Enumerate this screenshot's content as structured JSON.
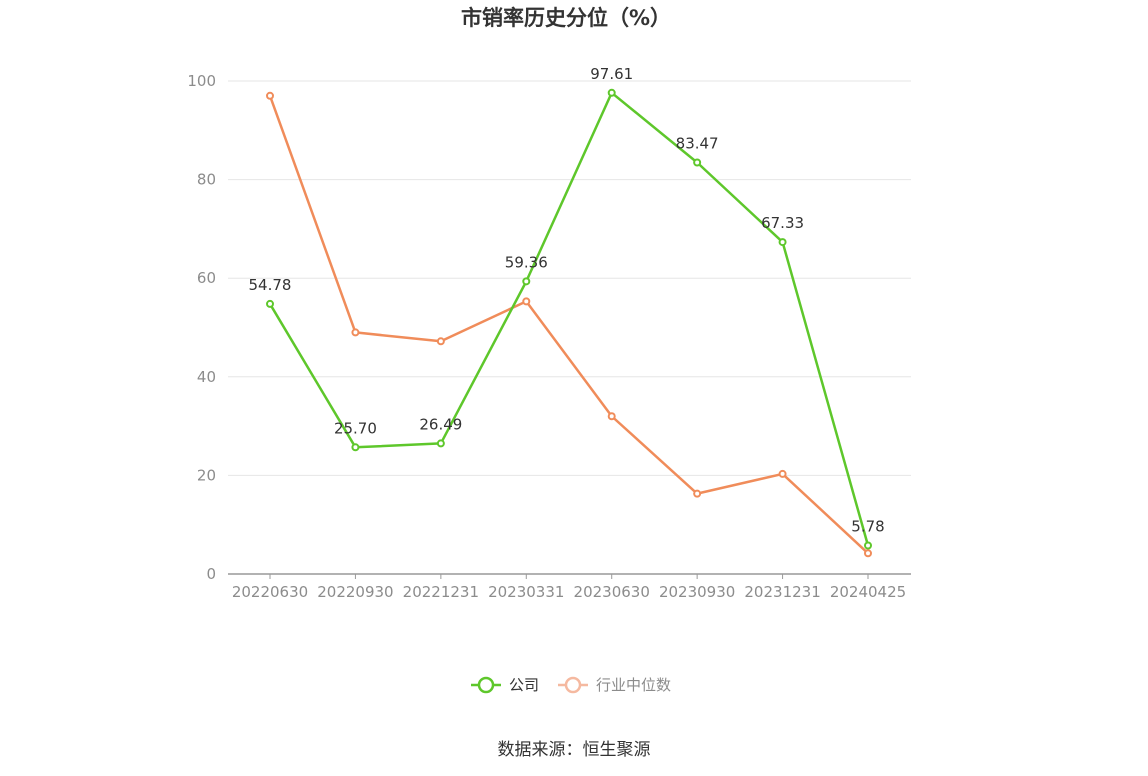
{
  "chart_data": {
    "type": "line",
    "title": "市销率历史分位（%）",
    "categories": [
      "20220630",
      "20220930",
      "20221231",
      "20230331",
      "20230630",
      "20230930",
      "20231231",
      "20240425"
    ],
    "series": [
      {
        "name": "公司",
        "color": "#5ec72b",
        "values": [
          54.78,
          25.7,
          26.49,
          59.36,
          97.61,
          83.47,
          67.33,
          5.78
        ],
        "labels": [
          "54.78",
          "25.70",
          "26.49",
          "59.36",
          "97.61",
          "83.47",
          "67.33",
          "5.78"
        ]
      },
      {
        "name": "行业中位数",
        "color": "#f08c5a",
        "values": [
          97.0,
          49.0,
          47.2,
          55.3,
          32.0,
          16.3,
          20.3,
          4.2
        ]
      }
    ],
    "ylim": [
      0,
      100
    ],
    "yticks": [
      "0",
      "20",
      "40",
      "60",
      "80",
      "100"
    ],
    "grid": true,
    "legend_position": "bottom"
  },
  "source": "数据来源：恒生聚源"
}
